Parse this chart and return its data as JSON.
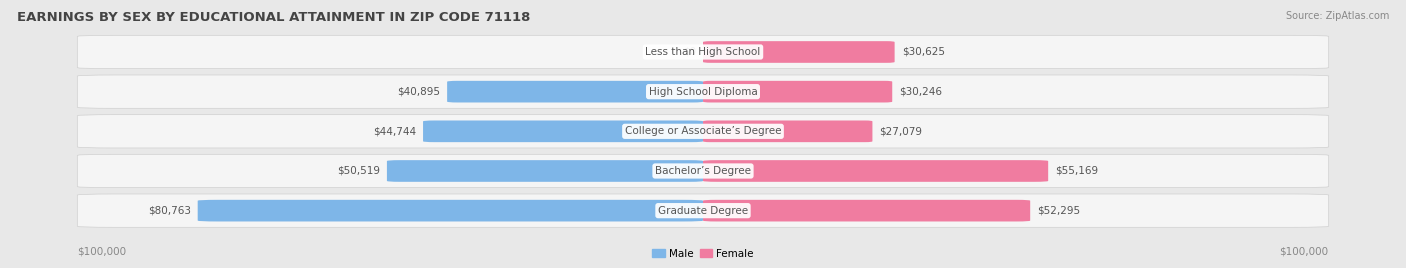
{
  "title": "EARNINGS BY SEX BY EDUCATIONAL ATTAINMENT IN ZIP CODE 71118",
  "source": "Source: ZipAtlas.com",
  "categories": [
    "Less than High School",
    "High School Diploma",
    "College or Associate’s Degree",
    "Bachelor’s Degree",
    "Graduate Degree"
  ],
  "male_values": [
    0,
    40895,
    44744,
    50519,
    80763
  ],
  "female_values": [
    30625,
    30246,
    27079,
    55169,
    52295
  ],
  "male_color": "#7EB6E8",
  "female_color": "#F07CA0",
  "male_label": "Male",
  "female_label": "Female",
  "max_value": 100000,
  "fig_bg_color": "#e8e8e8",
  "row_bg_color": "#f5f5f5",
  "row_border_color": "#d0d0d0",
  "title_color": "#444444",
  "source_color": "#888888",
  "label_color": "#555555",
  "value_color": "#555555",
  "title_fontsize": 9.5,
  "source_fontsize": 7,
  "cat_fontsize": 7.5,
  "val_fontsize": 7.5
}
